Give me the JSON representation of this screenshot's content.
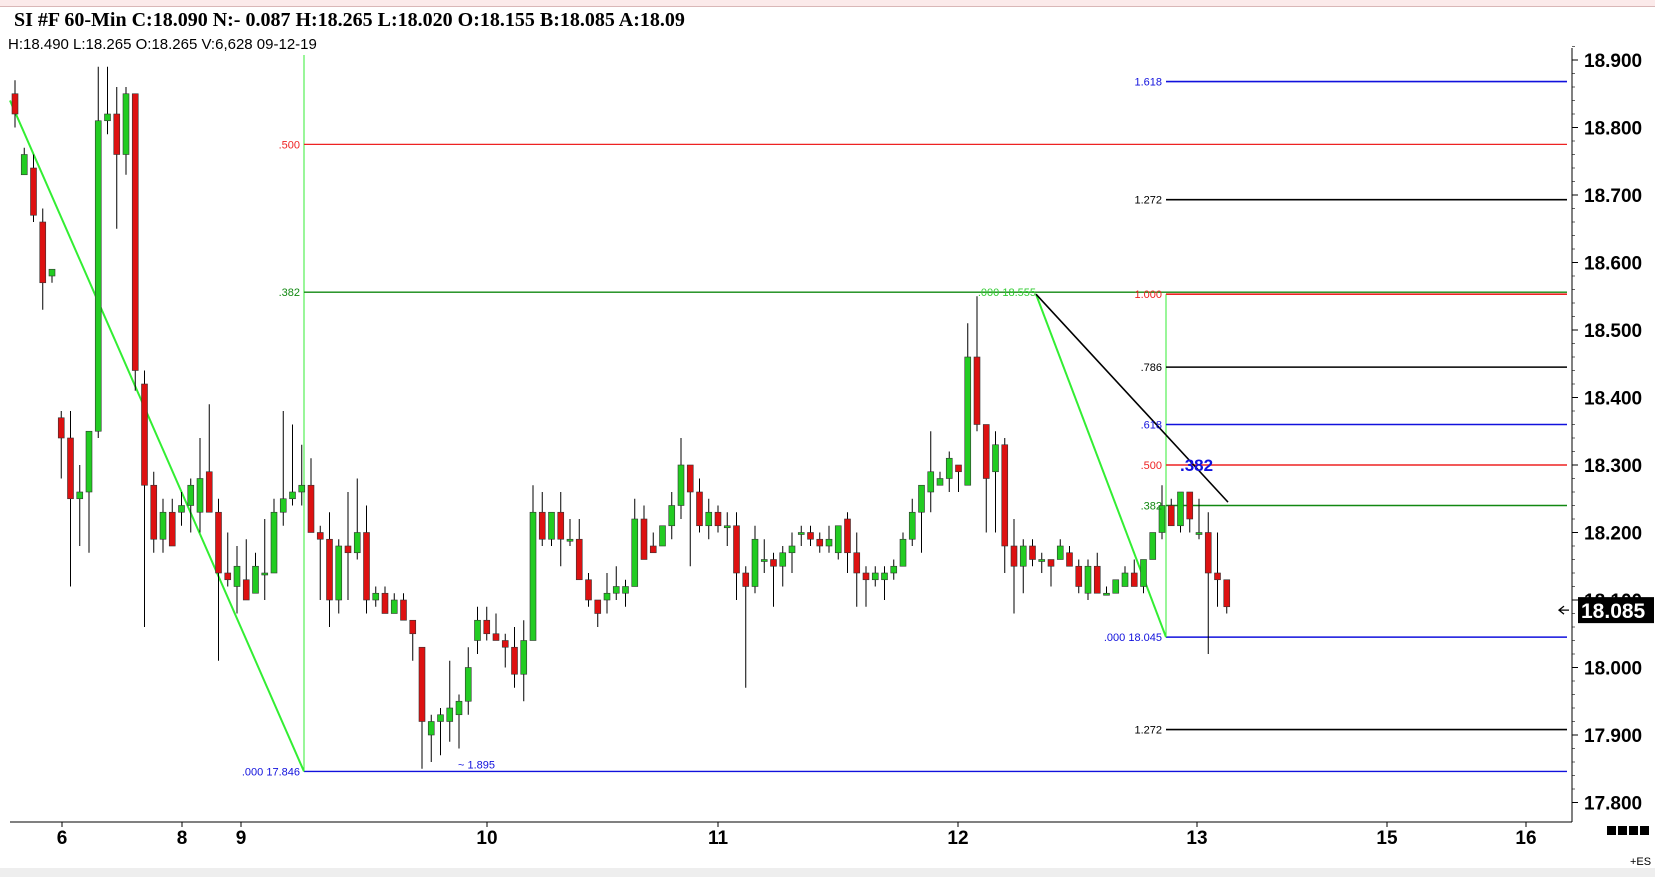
{
  "header": {
    "title": "SI #F 60-Min C:18.090 N:- 0.087 H:18.265 L:18.020 O:18.155 B:18.085 A:18.09",
    "subtitle": "H:18.490  L:18.265  O:18.265  V:6,628  09-12-19"
  },
  "colors": {
    "up": "#22cc22",
    "down": "#dd1111",
    "fib_red": "#ee2222",
    "fib_green": "#118811",
    "fib_blue": "#1111dd",
    "fib_black": "#000000",
    "trend_green": "#33ee33",
    "marker_bg": "#000000"
  },
  "chart_data": {
    "type": "candlestick",
    "symbol": "SI #F",
    "interval": "60-Min",
    "ylim": [
      17.78,
      18.93
    ],
    "yticks": [
      "18.900",
      "18.800",
      "18.700",
      "18.600",
      "18.500",
      "18.400",
      "18.300",
      "18.200",
      "18.100",
      "18.000",
      "17.900",
      "17.800"
    ],
    "xlabels": [
      "6",
      "8",
      "9",
      "10",
      "11",
      "12",
      "13",
      "15",
      "16"
    ],
    "last_price": "18.085",
    "corner_label": "+ES",
    "candles": [
      {
        "o": 18.85,
        "h": 18.87,
        "l": 18.8,
        "c": 18.82
      },
      {
        "o": 18.73,
        "h": 18.77,
        "l": 18.73,
        "c": 18.76
      },
      {
        "o": 18.74,
        "h": 18.76,
        "l": 18.66,
        "c": 18.67
      },
      {
        "o": 18.66,
        "h": 18.68,
        "l": 18.53,
        "c": 18.57
      },
      {
        "o": 18.58,
        "h": 18.59,
        "l": 18.57,
        "c": 18.59
      },
      {
        "o": 18.37,
        "h": 18.38,
        "l": 18.28,
        "c": 18.34
      },
      {
        "o": 18.34,
        "h": 18.38,
        "l": 18.12,
        "c": 18.25
      },
      {
        "o": 18.25,
        "h": 18.3,
        "l": 18.18,
        "c": 18.26
      },
      {
        "o": 18.26,
        "h": 18.34,
        "l": 18.17,
        "c": 18.35
      },
      {
        "o": 18.35,
        "h": 18.89,
        "l": 18.34,
        "c": 18.81
      },
      {
        "o": 18.81,
        "h": 18.89,
        "l": 18.79,
        "c": 18.82
      },
      {
        "o": 18.82,
        "h": 18.86,
        "l": 18.65,
        "c": 18.76
      },
      {
        "o": 18.76,
        "h": 18.86,
        "l": 18.73,
        "c": 18.85
      },
      {
        "o": 18.85,
        "h": 18.85,
        "l": 18.41,
        "c": 18.44
      },
      {
        "o": 18.42,
        "h": 18.44,
        "l": 18.06,
        "c": 18.27
      },
      {
        "o": 18.27,
        "h": 18.29,
        "l": 18.17,
        "c": 18.19
      },
      {
        "o": 18.19,
        "h": 18.25,
        "l": 18.17,
        "c": 18.23
      },
      {
        "o": 18.23,
        "h": 18.25,
        "l": 18.18,
        "c": 18.18
      },
      {
        "o": 18.23,
        "h": 18.26,
        "l": 18.21,
        "c": 18.24
      },
      {
        "o": 18.24,
        "h": 18.28,
        "l": 18.2,
        "c": 18.27
      },
      {
        "o": 18.23,
        "h": 18.34,
        "l": 18.2,
        "c": 18.28
      },
      {
        "o": 18.29,
        "h": 18.39,
        "l": 18.24,
        "c": 18.23
      },
      {
        "o": 18.23,
        "h": 18.25,
        "l": 18.01,
        "c": 18.14
      },
      {
        "o": 18.14,
        "h": 18.2,
        "l": 18.12,
        "c": 18.13
      },
      {
        "o": 18.12,
        "h": 18.18,
        "l": 18.08,
        "c": 18.15
      },
      {
        "o": 18.13,
        "h": 18.19,
        "l": 18.11,
        "c": 18.1
      },
      {
        "o": 18.11,
        "h": 18.17,
        "l": 18.11,
        "c": 18.15
      },
      {
        "o": 18.14,
        "h": 18.22,
        "l": 18.1,
        "c": 18.14
      },
      {
        "o": 18.14,
        "h": 18.25,
        "l": 18.14,
        "c": 18.23
      },
      {
        "o": 18.23,
        "h": 18.38,
        "l": 18.21,
        "c": 18.25
      },
      {
        "o": 18.25,
        "h": 18.36,
        "l": 18.24,
        "c": 18.26
      },
      {
        "o": 18.26,
        "h": 18.33,
        "l": 18.24,
        "c": 18.27
      },
      {
        "o": 18.27,
        "h": 18.31,
        "l": 18.21,
        "c": 18.2
      },
      {
        "o": 18.2,
        "h": 18.21,
        "l": 18.1,
        "c": 18.19
      },
      {
        "o": 18.19,
        "h": 18.23,
        "l": 18.06,
        "c": 18.1
      },
      {
        "o": 18.1,
        "h": 18.19,
        "l": 18.08,
        "c": 18.18
      },
      {
        "o": 18.18,
        "h": 18.26,
        "l": 18.1,
        "c": 18.17
      },
      {
        "o": 18.17,
        "h": 18.28,
        "l": 18.16,
        "c": 18.2
      },
      {
        "o": 18.2,
        "h": 18.24,
        "l": 18.08,
        "c": 18.1
      },
      {
        "o": 18.1,
        "h": 18.12,
        "l": 18.09,
        "c": 18.11
      },
      {
        "o": 18.11,
        "h": 18.12,
        "l": 18.08,
        "c": 18.08
      },
      {
        "o": 18.08,
        "h": 18.11,
        "l": 18.08,
        "c": 18.1
      },
      {
        "o": 18.1,
        "h": 18.11,
        "l": 18.08,
        "c": 18.07
      },
      {
        "o": 18.07,
        "h": 18.07,
        "l": 18.01,
        "c": 18.05
      },
      {
        "o": 18.03,
        "h": 18.03,
        "l": 17.85,
        "c": 17.92
      },
      {
        "o": 17.9,
        "h": 17.93,
        "l": 17.86,
        "c": 17.92
      },
      {
        "o": 17.92,
        "h": 17.94,
        "l": 17.87,
        "c": 17.93
      },
      {
        "o": 17.92,
        "h": 18.01,
        "l": 17.89,
        "c": 17.94
      },
      {
        "o": 17.93,
        "h": 17.96,
        "l": 17.88,
        "c": 17.95
      },
      {
        "o": 17.95,
        "h": 18.03,
        "l": 17.93,
        "c": 18.0
      },
      {
        "o": 18.04,
        "h": 18.09,
        "l": 18.02,
        "c": 18.07
      },
      {
        "o": 18.07,
        "h": 18.09,
        "l": 18.04,
        "c": 18.05
      },
      {
        "o": 18.05,
        "h": 18.08,
        "l": 18.04,
        "c": 18.04
      },
      {
        "o": 18.04,
        "h": 18.05,
        "l": 18.0,
        "c": 18.03
      },
      {
        "o": 18.03,
        "h": 18.06,
        "l": 17.97,
        "c": 17.99
      },
      {
        "o": 17.99,
        "h": 18.07,
        "l": 17.95,
        "c": 18.04
      },
      {
        "o": 18.04,
        "h": 18.27,
        "l": 18.04,
        "c": 18.23
      },
      {
        "o": 18.23,
        "h": 18.26,
        "l": 18.18,
        "c": 18.19
      },
      {
        "o": 18.19,
        "h": 18.23,
        "l": 18.18,
        "c": 18.23
      },
      {
        "o": 18.23,
        "h": 18.26,
        "l": 18.15,
        "c": 18.19
      },
      {
        "o": 18.19,
        "h": 18.22,
        "l": 18.18,
        "c": 18.19
      },
      {
        "o": 18.19,
        "h": 18.22,
        "l": 18.13,
        "c": 18.13
      },
      {
        "o": 18.13,
        "h": 18.14,
        "l": 18.09,
        "c": 18.1
      },
      {
        "o": 18.1,
        "h": 18.1,
        "l": 18.06,
        "c": 18.08
      },
      {
        "o": 18.1,
        "h": 18.14,
        "l": 18.08,
        "c": 18.11
      },
      {
        "o": 18.11,
        "h": 18.15,
        "l": 18.1,
        "c": 18.12
      },
      {
        "o": 18.11,
        "h": 18.13,
        "l": 18.09,
        "c": 18.12
      },
      {
        "o": 18.12,
        "h": 18.25,
        "l": 18.12,
        "c": 18.22
      },
      {
        "o": 18.22,
        "h": 18.24,
        "l": 18.16,
        "c": 18.16
      },
      {
        "o": 18.18,
        "h": 18.2,
        "l": 18.17,
        "c": 18.17
      },
      {
        "o": 18.18,
        "h": 18.21,
        "l": 18.18,
        "c": 18.21
      },
      {
        "o": 18.21,
        "h": 18.26,
        "l": 18.19,
        "c": 18.24
      },
      {
        "o": 18.24,
        "h": 18.34,
        "l": 18.22,
        "c": 18.3
      },
      {
        "o": 18.3,
        "h": 18.3,
        "l": 18.15,
        "c": 18.26
      },
      {
        "o": 18.26,
        "h": 18.28,
        "l": 18.2,
        "c": 18.21
      },
      {
        "o": 18.21,
        "h": 18.25,
        "l": 18.19,
        "c": 18.23
      },
      {
        "o": 18.23,
        "h": 18.24,
        "l": 18.2,
        "c": 18.21
      },
      {
        "o": 18.21,
        "h": 18.23,
        "l": 18.18,
        "c": 18.21
      },
      {
        "o": 18.21,
        "h": 18.23,
        "l": 18.1,
        "c": 18.14
      },
      {
        "o": 18.14,
        "h": 18.15,
        "l": 17.97,
        "c": 18.12
      },
      {
        "o": 18.12,
        "h": 18.21,
        "l": 18.11,
        "c": 18.19
      },
      {
        "o": 18.16,
        "h": 18.19,
        "l": 18.14,
        "c": 18.16
      },
      {
        "o": 18.16,
        "h": 18.17,
        "l": 18.09,
        "c": 18.15
      },
      {
        "o": 18.15,
        "h": 18.18,
        "l": 18.12,
        "c": 18.17
      },
      {
        "o": 18.17,
        "h": 18.2,
        "l": 18.14,
        "c": 18.18
      },
      {
        "o": 18.2,
        "h": 18.21,
        "l": 18.18,
        "c": 18.2
      },
      {
        "o": 18.2,
        "h": 18.21,
        "l": 18.18,
        "c": 18.19
      },
      {
        "o": 18.19,
        "h": 18.2,
        "l": 18.17,
        "c": 18.18
      },
      {
        "o": 18.18,
        "h": 18.21,
        "l": 18.17,
        "c": 18.19
      },
      {
        "o": 18.17,
        "h": 18.2,
        "l": 18.16,
        "c": 18.21
      },
      {
        "o": 18.22,
        "h": 18.23,
        "l": 18.14,
        "c": 18.17
      },
      {
        "o": 18.17,
        "h": 18.2,
        "l": 18.09,
        "c": 18.14
      },
      {
        "o": 18.14,
        "h": 18.15,
        "l": 18.09,
        "c": 18.13
      },
      {
        "o": 18.13,
        "h": 18.15,
        "l": 18.12,
        "c": 18.14
      },
      {
        "o": 18.13,
        "h": 18.15,
        "l": 18.1,
        "c": 18.14
      },
      {
        "o": 18.14,
        "h": 18.16,
        "l": 18.13,
        "c": 18.15
      },
      {
        "o": 18.15,
        "h": 18.2,
        "l": 18.15,
        "c": 18.19
      },
      {
        "o": 18.19,
        "h": 18.25,
        "l": 18.18,
        "c": 18.23
      },
      {
        "o": 18.23,
        "h": 18.26,
        "l": 18.17,
        "c": 18.27
      },
      {
        "o": 18.26,
        "h": 18.35,
        "l": 18.23,
        "c": 18.29
      },
      {
        "o": 18.27,
        "h": 18.29,
        "l": 18.27,
        "c": 18.28
      },
      {
        "o": 18.28,
        "h": 18.32,
        "l": 18.26,
        "c": 18.31
      },
      {
        "o": 18.3,
        "h": 18.3,
        "l": 18.26,
        "c": 18.29
      },
      {
        "o": 18.27,
        "h": 18.51,
        "l": 18.27,
        "c": 18.46
      },
      {
        "o": 18.46,
        "h": 18.55,
        "l": 18.35,
        "c": 18.36
      },
      {
        "o": 18.36,
        "h": 18.36,
        "l": 18.2,
        "c": 18.28
      },
      {
        "o": 18.29,
        "h": 18.35,
        "l": 18.2,
        "c": 18.33
      },
      {
        "o": 18.33,
        "h": 18.34,
        "l": 18.14,
        "c": 18.18
      },
      {
        "o": 18.18,
        "h": 18.22,
        "l": 18.08,
        "c": 18.15
      },
      {
        "o": 18.15,
        "h": 18.19,
        "l": 18.11,
        "c": 18.18
      },
      {
        "o": 18.18,
        "h": 18.19,
        "l": 18.15,
        "c": 18.16
      },
      {
        "o": 18.16,
        "h": 18.17,
        "l": 18.14,
        "c": 18.16
      },
      {
        "o": 18.16,
        "h": 18.16,
        "l": 18.12,
        "c": 18.15
      },
      {
        "o": 18.16,
        "h": 18.19,
        "l": 18.16,
        "c": 18.18
      },
      {
        "o": 18.17,
        "h": 18.18,
        "l": 18.15,
        "c": 18.15
      },
      {
        "o": 18.15,
        "h": 18.16,
        "l": 18.11,
        "c": 18.12
      },
      {
        "o": 18.11,
        "h": 18.16,
        "l": 18.1,
        "c": 18.15
      },
      {
        "o": 18.15,
        "h": 18.17,
        "l": 18.12,
        "c": 18.11
      },
      {
        "o": 18.11,
        "h": 18.12,
        "l": 18.11,
        "c": 18.11
      },
      {
        "o": 18.11,
        "h": 18.13,
        "l": 18.11,
        "c": 18.13
      },
      {
        "o": 18.12,
        "h": 18.15,
        "l": 18.12,
        "c": 18.14
      },
      {
        "o": 18.14,
        "h": 18.16,
        "l": 18.12,
        "c": 18.12
      },
      {
        "o": 18.12,
        "h": 18.16,
        "l": 18.11,
        "c": 18.16
      },
      {
        "o": 18.16,
        "h": 18.19,
        "l": 18.16,
        "c": 18.2
      },
      {
        "o": 18.2,
        "h": 18.27,
        "l": 18.19,
        "c": 18.24
      },
      {
        "o": 18.24,
        "h": 18.25,
        "l": 18.21,
        "c": 18.21
      },
      {
        "o": 18.21,
        "h": 18.26,
        "l": 18.2,
        "c": 18.26
      },
      {
        "o": 18.26,
        "h": 18.26,
        "l": 18.2,
        "c": 18.22
      },
      {
        "o": 18.2,
        "h": 18.25,
        "l": 18.19,
        "c": 18.2
      },
      {
        "o": 18.2,
        "h": 18.23,
        "l": 18.02,
        "c": 18.14
      },
      {
        "o": 18.14,
        "h": 18.2,
        "l": 18.09,
        "c": 18.13
      },
      {
        "o": 18.13,
        "h": 18.13,
        "l": 18.08,
        "c": 18.09
      }
    ],
    "fib_left": {
      "levels": [
        {
          "label": ".500",
          "value": 18.775,
          "color": "#ee2222"
        },
        {
          "label": ".382",
          "value": 18.556,
          "color": "#118811"
        },
        {
          "label": ".000  17.846",
          "value": 17.846,
          "color": "#1111dd"
        }
      ],
      "anchor_low_label": "~ 1.895"
    },
    "fib_right": {
      "levels": [
        {
          "label": "1.618",
          "value": 18.868,
          "color": "#1111dd"
        },
        {
          "label": "1.272",
          "value": 18.693,
          "color": "#000000"
        },
        {
          "label": "1.000",
          "value": 18.553,
          "color": "#ee2222"
        },
        {
          "label": ".786",
          "value": 18.445,
          "color": "#000000"
        },
        {
          "label": ".618",
          "value": 18.36,
          "color": "#1111dd"
        },
        {
          "label": ".500",
          "value": 18.3,
          "color": "#ee2222"
        },
        {
          "label": ".382",
          "value": 18.24,
          "color": "#118811"
        },
        {
          "label": ".000  18.045",
          "value": 18.045,
          "color": "#1111dd"
        },
        {
          "label": "1.272",
          "value": 17.908,
          "color": "#000000"
        }
      ],
      "swing_high_label": ".000  18.555",
      "retrace_label": ".382"
    }
  }
}
